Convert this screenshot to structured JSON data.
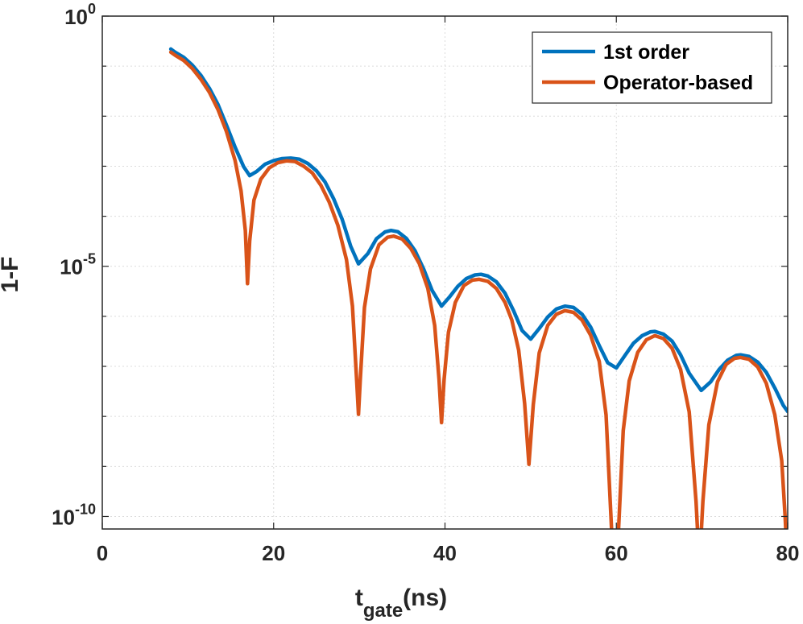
{
  "chart_data": {
    "type": "line",
    "xlabel_main": "t",
    "xlabel_sub": "gate",
    "xlabel_unit": "(ns)",
    "ylabel": "1-F",
    "xlim": [
      0,
      80
    ],
    "ylim_log10": [
      -10.25,
      0
    ],
    "y_scale": "log",
    "grid": true,
    "legend_position": "top-right",
    "x_ticks": [
      "0",
      "20",
      "40",
      "60",
      "80"
    ],
    "x_tick_values": [
      0,
      20,
      40,
      60,
      80
    ],
    "y_ticks": [
      {
        "base": "10",
        "exp": "0",
        "value": 0
      },
      {
        "base": "10",
        "exp": "-5",
        "value": -5
      },
      {
        "base": "10",
        "exp": "-10",
        "value": -10
      }
    ],
    "series": [
      {
        "name": "1st order",
        "color": "#0072BD",
        "points": [
          [
            8,
            0.22
          ],
          [
            8.5,
            0.19
          ],
          [
            9.5,
            0.15
          ],
          [
            10.5,
            0.105
          ],
          [
            11.5,
            0.066
          ],
          [
            12.5,
            0.036
          ],
          [
            13.5,
            0.0172
          ],
          [
            14.5,
            0.0066
          ],
          [
            15.5,
            0.0024
          ],
          [
            16.5,
            0.00098
          ],
          [
            17.2,
            0.00065
          ],
          [
            18,
            0.00078
          ],
          [
            19,
            0.0011
          ],
          [
            20,
            0.0013
          ],
          [
            21,
            0.00142
          ],
          [
            22,
            0.00145
          ],
          [
            23,
            0.00138
          ],
          [
            24,
            0.00113
          ],
          [
            25,
            0.00081
          ],
          [
            26,
            0.000485
          ],
          [
            27,
            0.000224
          ],
          [
            28,
            8.7e-05
          ],
          [
            29,
            2.5e-05
          ],
          [
            29.9,
            1.12e-05
          ],
          [
            31,
            1.8e-05
          ],
          [
            32,
            3.55e-05
          ],
          [
            33,
            4.85e-05
          ],
          [
            33.7,
            5.2e-05
          ],
          [
            34.5,
            4.9e-05
          ],
          [
            35.5,
            3.6e-05
          ],
          [
            36.5,
            2.05e-05
          ],
          [
            37.5,
            8.9e-06
          ],
          [
            38.5,
            3.3e-06
          ],
          [
            39.6,
            1.6e-06
          ],
          [
            40.5,
            2.4e-06
          ],
          [
            41.5,
            4e-06
          ],
          [
            42.5,
            5.7e-06
          ],
          [
            43.5,
            6.7e-06
          ],
          [
            44.2,
            6.9e-06
          ],
          [
            45,
            6.4e-06
          ],
          [
            46,
            4.9e-06
          ],
          [
            47,
            2.9e-06
          ],
          [
            48,
            1.3e-06
          ],
          [
            49,
            5.2e-07
          ],
          [
            50,
            3.5e-07
          ],
          [
            51,
            5.7e-07
          ],
          [
            52,
            9.7e-07
          ],
          [
            53,
            1.4e-06
          ],
          [
            54,
            1.6e-06
          ],
          [
            55,
            1.5e-06
          ],
          [
            56,
            1.1e-06
          ],
          [
            57,
            6.1e-07
          ],
          [
            58,
            2.6e-07
          ],
          [
            59,
            1.18e-07
          ],
          [
            60,
            9.3e-08
          ],
          [
            61,
            1.65e-07
          ],
          [
            62,
            2.9e-07
          ],
          [
            63,
            4.1e-07
          ],
          [
            64,
            4.9e-07
          ],
          [
            64.5,
            5e-07
          ],
          [
            65.5,
            4.4e-07
          ],
          [
            66.5,
            3.2e-07
          ],
          [
            67.5,
            1.7e-07
          ],
          [
            68.5,
            7.3e-08
          ],
          [
            69.9,
            3.3e-08
          ],
          [
            71,
            4.9e-08
          ],
          [
            72,
            8.7e-08
          ],
          [
            73,
            1.33e-07
          ],
          [
            74,
            1.66e-07
          ],
          [
            74.5,
            1.7e-07
          ],
          [
            75.5,
            1.58e-07
          ],
          [
            76.5,
            1.22e-07
          ],
          [
            77.5,
            7.6e-08
          ],
          [
            78.5,
            3.7e-08
          ],
          [
            79.5,
            1.65e-08
          ],
          [
            80,
            1.25e-08
          ]
        ]
      },
      {
        "name": "Operator-based",
        "color": "#D95319",
        "points": [
          [
            8,
            0.19
          ],
          [
            8.5,
            0.165
          ],
          [
            9.5,
            0.13
          ],
          [
            10.5,
            0.09
          ],
          [
            11.5,
            0.055
          ],
          [
            12.5,
            0.03
          ],
          [
            13.5,
            0.0136
          ],
          [
            14.5,
            0.0049
          ],
          [
            15.5,
            0.0013
          ],
          [
            16.2,
            0.00032
          ],
          [
            16.7,
            5.2e-05
          ],
          [
            16.95,
            4.5e-06
          ],
          [
            17.2,
            3.2e-05
          ],
          [
            17.7,
            0.00021
          ],
          [
            18.5,
            0.00055
          ],
          [
            19.5,
            0.00093
          ],
          [
            20.5,
            0.00118
          ],
          [
            21.5,
            0.00128
          ],
          [
            22.5,
            0.00124
          ],
          [
            23.5,
            0.001
          ],
          [
            24.5,
            0.00074
          ],
          [
            25.5,
            0.00042
          ],
          [
            26.5,
            0.00019
          ],
          [
            27.5,
            6.6e-05
          ],
          [
            28.5,
            1.35e-05
          ],
          [
            29.2,
            1.6e-06
          ],
          [
            29.7,
            5e-08
          ],
          [
            29.9,
            1.1e-08
          ],
          [
            30.1,
            5e-08
          ],
          [
            30.6,
            1.5e-06
          ],
          [
            31.3,
            8.9e-06
          ],
          [
            32.3,
            2.7e-05
          ],
          [
            33.3,
            3.8e-05
          ],
          [
            34,
            4e-05
          ],
          [
            35,
            3.5e-05
          ],
          [
            36,
            2.3e-05
          ],
          [
            37,
            1.13e-05
          ],
          [
            38,
            3.6e-06
          ],
          [
            38.8,
            6.6e-07
          ],
          [
            39.3,
            5.5e-08
          ],
          [
            39.6,
            7.5e-09
          ],
          [
            39.9,
            5.5e-08
          ],
          [
            40.4,
            4.8e-07
          ],
          [
            41.2,
            1.9e-06
          ],
          [
            42.2,
            4.1e-06
          ],
          [
            43.2,
            5.3e-06
          ],
          [
            44,
            5.5e-06
          ],
          [
            45,
            5e-06
          ],
          [
            46,
            3.6e-06
          ],
          [
            47,
            1.9e-06
          ],
          [
            47.8,
            8.4e-07
          ],
          [
            48.6,
            2.1e-07
          ],
          [
            49.3,
            1.8e-08
          ],
          [
            49.8,
            1.1e-09
          ],
          [
            50.3,
            1.7e-08
          ],
          [
            51,
            1.86e-07
          ],
          [
            52,
            6.6e-07
          ],
          [
            53,
            1.1e-06
          ],
          [
            54,
            1.3e-06
          ],
          [
            55,
            1.2e-06
          ],
          [
            56,
            8.4e-07
          ],
          [
            57,
            4.2e-07
          ],
          [
            58,
            1.26e-07
          ],
          [
            58.8,
            1.07e-08
          ],
          [
            59.5,
            3.5e-11
          ],
          [
            59.85,
            1e-12
          ],
          [
            60.2,
            3.5e-11
          ],
          [
            60.8,
            5.2e-09
          ],
          [
            61.5,
            5.1e-08
          ],
          [
            62.5,
            1.91e-07
          ],
          [
            63.5,
            3.4e-07
          ],
          [
            64.5,
            4.1e-07
          ],
          [
            65.5,
            3.6e-07
          ],
          [
            66.5,
            2.3e-07
          ],
          [
            67.5,
            8.7e-08
          ],
          [
            68.5,
            1.23e-08
          ],
          [
            69.3,
            2e-10
          ],
          [
            69.7,
            1e-11
          ],
          [
            70.1,
            2e-10
          ],
          [
            70.8,
            6.8e-09
          ],
          [
            71.8,
            4.9e-08
          ],
          [
            72.8,
            1.09e-07
          ],
          [
            73.8,
            1.45e-07
          ],
          [
            74.5,
            1.51e-07
          ],
          [
            75.5,
            1.38e-07
          ],
          [
            76.5,
            9.7e-08
          ],
          [
            77.5,
            4.6e-08
          ],
          [
            78.5,
            1.08e-08
          ],
          [
            79.3,
            1.3e-09
          ],
          [
            79.7,
            1e-10
          ],
          [
            79.9,
            2e-11
          ],
          [
            80,
            5e-11
          ]
        ]
      }
    ]
  }
}
